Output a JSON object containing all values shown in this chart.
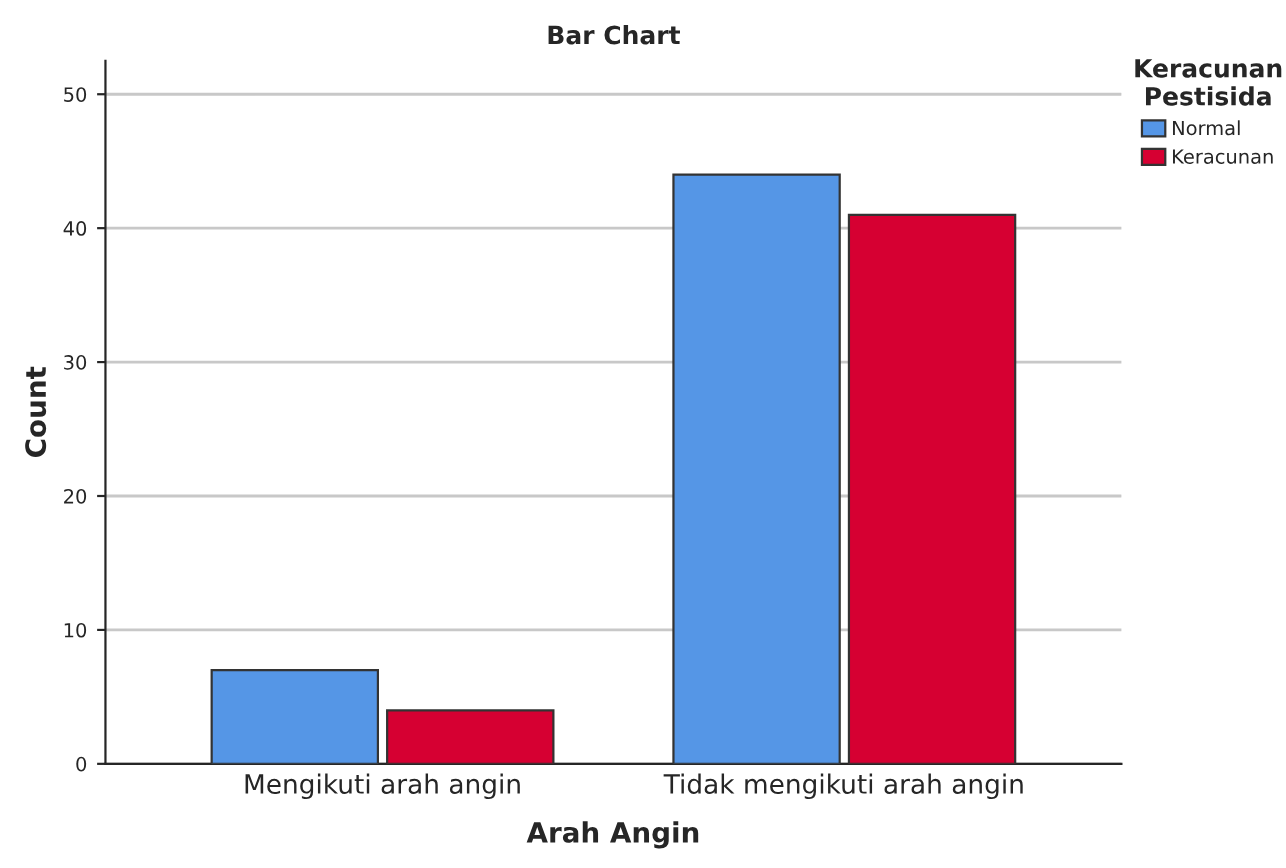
{
  "chart_data": {
    "type": "bar",
    "title": "Bar Chart",
    "xlabel": "Arah Angin",
    "ylabel": "Count",
    "legend_title": "Keracunan\nPestisida",
    "categories": [
      "Mengikuti arah angin",
      "Tidak mengikuti arah angin"
    ],
    "series": [
      {
        "name": "Normal",
        "color": "#5596e6",
        "values": [
          7,
          44
        ]
      },
      {
        "name": "Keracunan",
        "color": "#d60032",
        "values": [
          4,
          41
        ]
      }
    ],
    "ylim": [
      0,
      52.5
    ],
    "yticks": [
      0,
      10,
      20,
      30,
      40,
      50
    ],
    "grid": "y",
    "legend": "right"
  }
}
